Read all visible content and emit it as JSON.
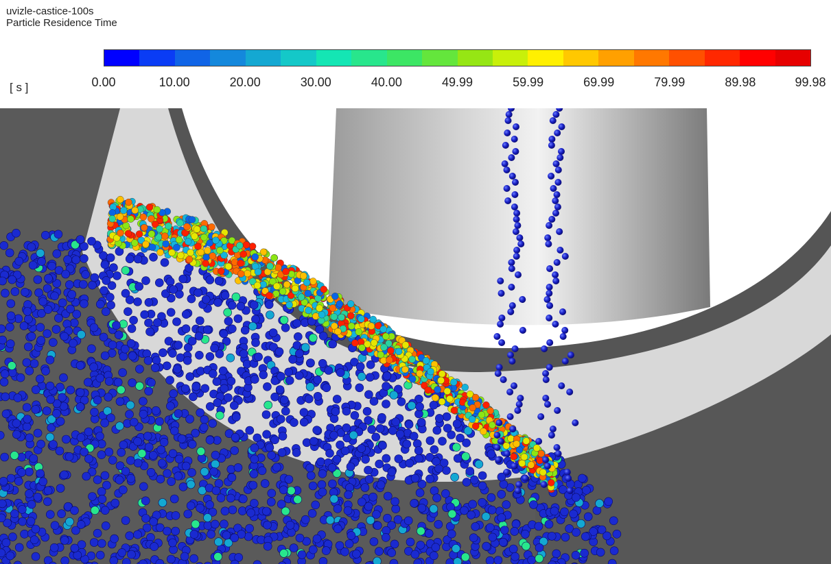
{
  "header": {
    "case_name": "uvizle-castice-100s",
    "variable_name": "Particle Residence Time"
  },
  "legend": {
    "unit": "[ s ]",
    "ticks": [
      "0.00",
      "10.00",
      "20.00",
      "30.00",
      "40.00",
      "49.99",
      "59.99",
      "69.99",
      "79.99",
      "89.98",
      "99.98"
    ],
    "colors": [
      "#0000ff",
      "#0a3cf5",
      "#1064e6",
      "#1488dc",
      "#14a8d2",
      "#14c8c8",
      "#14e6b4",
      "#28e68c",
      "#3ce664",
      "#64e63c",
      "#96e614",
      "#c8f00a",
      "#fff000",
      "#ffc800",
      "#ffa000",
      "#ff7800",
      "#ff5000",
      "#ff2800",
      "#ff0000",
      "#e60000"
    ]
  },
  "scene": {
    "description_icon": "particle-cfd-viewport"
  }
}
